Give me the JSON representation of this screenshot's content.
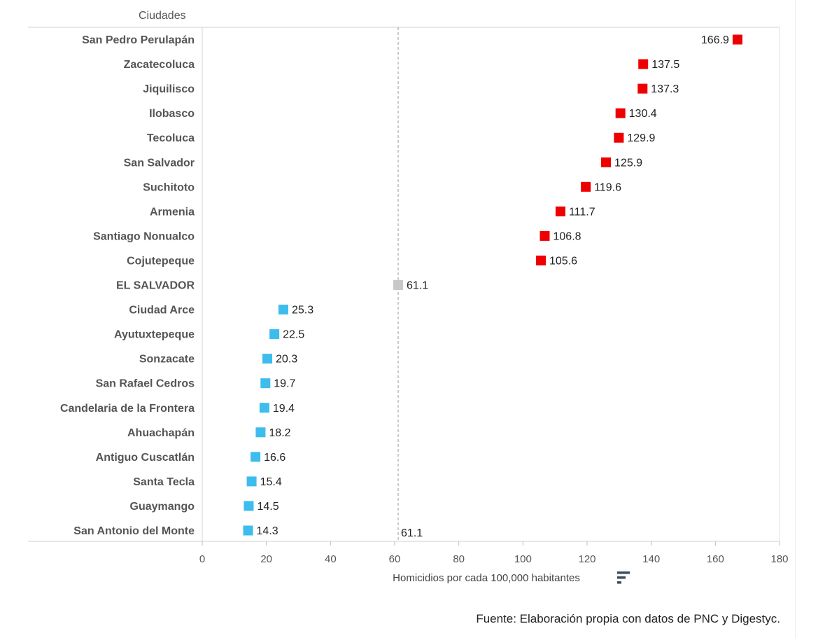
{
  "chart_data": {
    "type": "scatter",
    "row_header": "Ciudades",
    "categories": [
      "San Pedro Perulapán",
      "Zacatecoluca",
      "Jiquilisco",
      "Ilobasco",
      "Tecoluca",
      "San Salvador",
      "Suchitoto",
      "Armenia",
      "Santiago Nonualco",
      "Cojutepeque",
      "EL SALVADOR",
      "Ciudad Arce",
      "Ayutuxtepeque",
      "Sonzacate",
      "San Rafael Cedros",
      "Candelaria de la Frontera",
      "Ahuachapán",
      "Antiguo Cuscatlán",
      "Santa Tecla",
      "Guaymango",
      "San Antonio del Monte"
    ],
    "values": [
      166.9,
      137.5,
      137.3,
      130.4,
      129.9,
      125.9,
      119.6,
      111.7,
      106.8,
      105.6,
      61.1,
      25.3,
      22.5,
      20.3,
      19.7,
      19.4,
      18.2,
      16.6,
      15.4,
      14.5,
      14.3
    ],
    "value_labels": [
      "166.9",
      "137.5",
      "137.3",
      "130.4",
      "129.9",
      "125.9",
      "119.6",
      "111.7",
      "106.8",
      "105.6",
      "61.1",
      "25.3",
      "22.5",
      "20.3",
      "19.7",
      "19.4",
      "18.2",
      "16.6",
      "15.4",
      "14.5",
      "14.3"
    ],
    "groups": [
      "high",
      "high",
      "high",
      "high",
      "high",
      "high",
      "high",
      "high",
      "high",
      "high",
      "reference",
      "low",
      "low",
      "low",
      "low",
      "low",
      "low",
      "low",
      "low",
      "low",
      "low"
    ],
    "group_colors": {
      "high": "#ee0000",
      "reference": "#c8c8c8",
      "low": "#3dbcee"
    },
    "reference_line": {
      "value": 61.1,
      "label": "61.1"
    },
    "xlabel": "Homicidios por cada 100,000 habitantes",
    "xlim": [
      0,
      180
    ],
    "xticks": [
      0,
      20,
      40,
      60,
      80,
      100,
      120,
      140,
      160,
      180
    ],
    "grid": false,
    "source": "Fuente: Elaboración propia con datos de PNC y Digestyc.",
    "sort_icon": "sort-descending-icon"
  }
}
